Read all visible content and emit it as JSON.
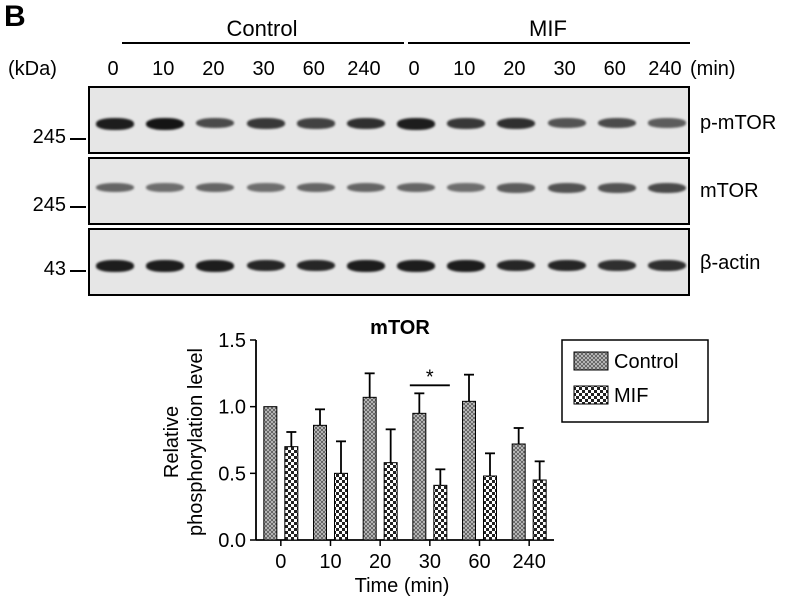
{
  "figure": {
    "panel_letter": "B",
    "groups": [
      "Control",
      "MIF"
    ],
    "kda_label": "(kDa)",
    "time_unit_label": "(min)",
    "lane_times": [
      "0",
      "10",
      "20",
      "30",
      "60",
      "240",
      "0",
      "10",
      "20",
      "30",
      "60",
      "240"
    ],
    "blots": [
      {
        "label": "p-mTOR",
        "mw": "245",
        "band_intensity": [
          0.95,
          1.0,
          0.7,
          0.8,
          0.75,
          0.85,
          0.95,
          0.8,
          0.85,
          0.65,
          0.7,
          0.6
        ]
      },
      {
        "label": "mTOR",
        "mw": "245",
        "band_intensity": [
          0.55,
          0.5,
          0.55,
          0.5,
          0.55,
          0.55,
          0.55,
          0.5,
          0.6,
          0.65,
          0.65,
          0.7
        ]
      },
      {
        "label": "β-actin",
        "mw": "43",
        "band_intensity": [
          0.95,
          0.95,
          0.95,
          0.9,
          0.9,
          0.95,
          0.95,
          0.95,
          0.9,
          0.9,
          0.85,
          0.85
        ]
      }
    ]
  },
  "chart_data": {
    "type": "bar",
    "title": "mTOR",
    "xlabel": "Time (min)",
    "ylabel": "Relative phosphorylation level",
    "ylabel_lines": [
      "Relative",
      "phosphorylation level"
    ],
    "categories": [
      "0",
      "10",
      "20",
      "30",
      "60",
      "240"
    ],
    "ylim": [
      0,
      1.5
    ],
    "yticks": [
      "0.0",
      "0.5",
      "1.0",
      "1.5"
    ],
    "series": [
      {
        "name": "Control",
        "values": [
          1.0,
          0.86,
          1.07,
          0.95,
          1.04,
          0.72
        ],
        "errors": [
          0.0,
          0.12,
          0.18,
          0.15,
          0.2,
          0.12
        ]
      },
      {
        "name": "MIF",
        "values": [
          0.7,
          0.5,
          0.58,
          0.41,
          0.48,
          0.45
        ],
        "errors": [
          0.11,
          0.24,
          0.25,
          0.12,
          0.17,
          0.14
        ]
      }
    ],
    "annotations": [
      {
        "text": "*",
        "category": "30"
      }
    ],
    "legend_position": "top-right"
  }
}
